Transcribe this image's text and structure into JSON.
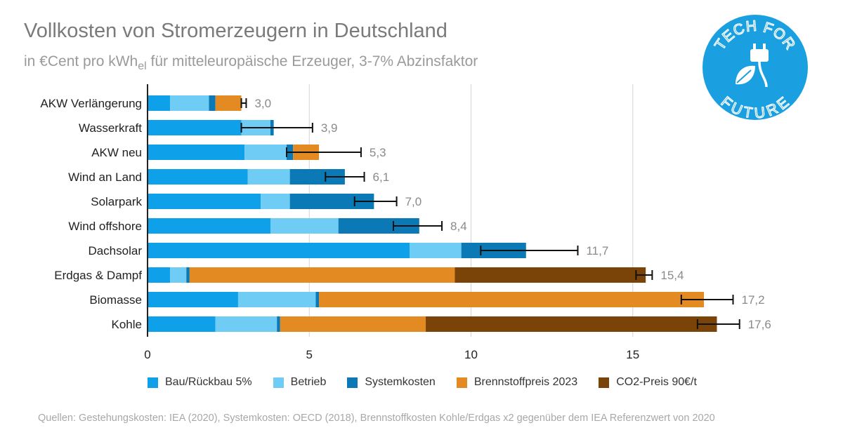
{
  "header": {
    "title": "Vollkosten von Stromerzeugern in Deutschland",
    "subtitle_pre": "in €Cent pro kWh",
    "subtitle_sub": "el",
    "subtitle_post": " für mitteleuropäische Erzeuger, 3-7% Abzinsfaktor"
  },
  "logo": {
    "top_text": "TECH FOR",
    "bottom_text": "FUTURE",
    "icon": "leaf-plug-icon",
    "color": "#1aa0e0"
  },
  "source": "Quellen: Gestehungskosten: IEA (2020), Systemkosten: OECD (2018), Brennstoffkosten Kohle/Erdgas x2 gegenüber dem IEA Referenzwert von 2020",
  "chart_data": {
    "type": "bar",
    "orientation": "horizontal",
    "stacked": true,
    "categories": [
      "AKW Verlängerung",
      "Wasserkraft",
      "AKW neu",
      "Wind an Land",
      "Solarpark",
      "Wind offshore",
      "Dachsolar",
      "Erdgas & Dampf",
      "Biomasse",
      "Kohle"
    ],
    "series": [
      {
        "name": "Bau/Rückbau 5%",
        "color": "#0ea1ea",
        "values": [
          0.7,
          2.9,
          3.0,
          3.1,
          3.5,
          3.8,
          8.1,
          0.7,
          2.8,
          2.1
        ]
      },
      {
        "name": "Betrieb",
        "color": "#6fcdf5",
        "values": [
          1.2,
          0.9,
          1.3,
          1.3,
          0.9,
          2.1,
          1.6,
          0.5,
          2.4,
          1.9
        ]
      },
      {
        "name": "Systemkosten",
        "color": "#0b79b5",
        "values": [
          0.2,
          0.1,
          0.2,
          1.7,
          2.6,
          2.5,
          2.0,
          0.1,
          0.1,
          0.1
        ]
      },
      {
        "name": "Brennstoffpreis 2023",
        "color": "#e38a22",
        "values": [
          0.8,
          0,
          0.8,
          0,
          0,
          0,
          0,
          8.2,
          11.9,
          4.5
        ]
      },
      {
        "name": "CO2-Preis 90€/t",
        "color": "#7a4307",
        "values": [
          0,
          0,
          0,
          0,
          0,
          0,
          0,
          5.9,
          0,
          9.0
        ]
      }
    ],
    "totals_labels": [
      "3,0",
      "3,9",
      "5,3",
      "6,1",
      "7,0",
      "8,4",
      "11,7",
      "15,4",
      "17,2",
      "17,6"
    ],
    "error_ranges": [
      [
        2.9,
        3.05
      ],
      [
        2.9,
        5.1
      ],
      [
        4.3,
        6.6
      ],
      [
        5.5,
        6.7
      ],
      [
        6.4,
        7.7
      ],
      [
        7.6,
        9.1
      ],
      [
        10.3,
        13.3
      ],
      [
        15.1,
        15.6
      ],
      [
        16.5,
        18.1
      ],
      [
        17.0,
        18.3
      ]
    ],
    "xlim": [
      0,
      20
    ],
    "xticks": [
      0,
      5,
      10,
      15
    ],
    "xtick_labels": [
      "0",
      "5",
      "10",
      "15"
    ],
    "grid": "vertical",
    "legend_position": "bottom",
    "xlabel": "",
    "ylabel": ""
  }
}
